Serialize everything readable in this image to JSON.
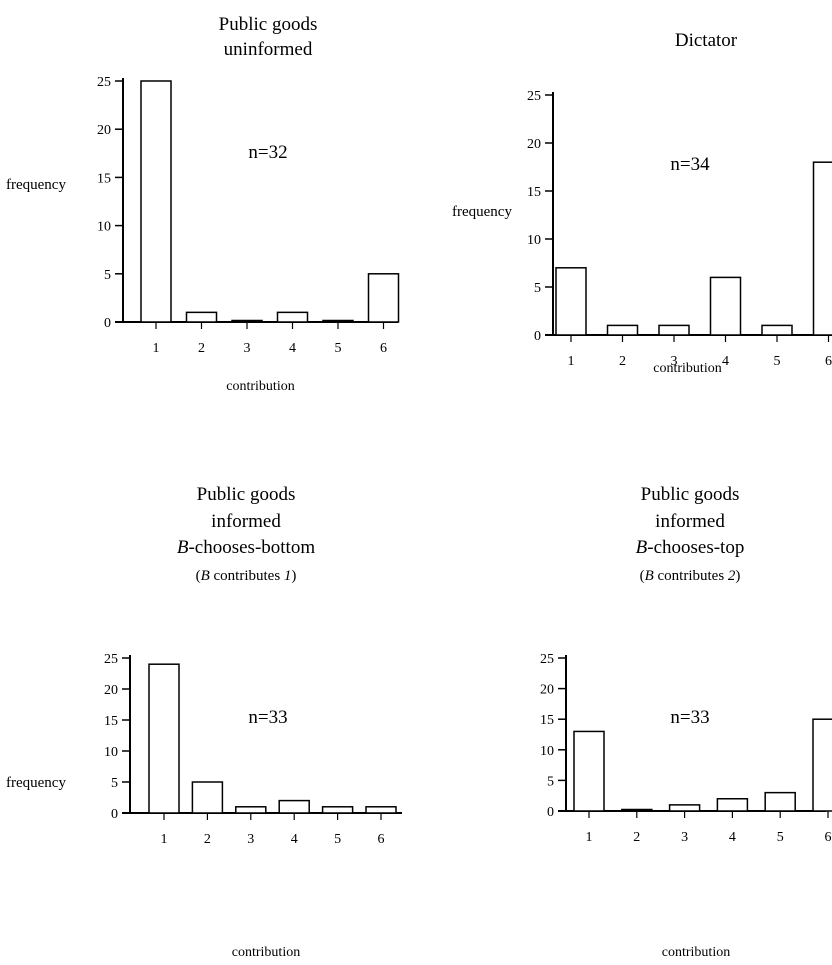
{
  "chart_data": [
    {
      "type": "bar",
      "title_lines": [
        "Public goods",
        "uninformed"
      ],
      "annotation": "n=32",
      "xlabel": "contribution",
      "ylabel": "frequency",
      "categories": [
        "1",
        "2",
        "3",
        "4",
        "5",
        "6"
      ],
      "values": [
        25,
        1,
        0,
        1,
        0,
        5
      ],
      "yticks": [
        "0",
        "5",
        "10",
        "15",
        "20",
        "25"
      ],
      "ylim": [
        0,
        25
      ]
    },
    {
      "type": "bar",
      "title_lines": [
        "Dictator"
      ],
      "annotation": "n=34",
      "xlabel": "contribution",
      "ylabel": "frequency",
      "categories": [
        "1",
        "2",
        "3",
        "4",
        "5",
        "6"
      ],
      "values": [
        7,
        1,
        1,
        6,
        1,
        18
      ],
      "yticks": [
        "0",
        "5",
        "10",
        "15",
        "20",
        "25"
      ],
      "ylim": [
        0,
        25
      ]
    },
    {
      "type": "bar",
      "title_lines": [
        "Public goods",
        "informed"
      ],
      "title_emph": {
        "italic": "B",
        "rest": "-chooses-bottom"
      },
      "subtitle": {
        "open": "(",
        "italic_b": "B",
        "mid": " contributes ",
        "italic_v": "1",
        "close": ")"
      },
      "annotation": "n=33",
      "xlabel": "contribution",
      "ylabel": "frequency",
      "categories": [
        "1",
        "2",
        "3",
        "4",
        "5",
        "6"
      ],
      "values": [
        24,
        5,
        1,
        2,
        1,
        1
      ],
      "yticks": [
        "0",
        "5",
        "10",
        "15",
        "20",
        "25"
      ],
      "ylim": [
        0,
        25
      ]
    },
    {
      "type": "bar",
      "title_lines": [
        "Public goods",
        "informed"
      ],
      "title_emph": {
        "italic": "B",
        "rest": "-chooses-top"
      },
      "subtitle": {
        "open": "(",
        "italic_b": "B",
        "mid": " contributes ",
        "italic_v": "2",
        "close": ")"
      },
      "annotation": "n=33",
      "xlabel": "contribution",
      "ylabel": "",
      "categories": [
        "1",
        "2",
        "3",
        "4",
        "5",
        "6"
      ],
      "values": [
        13,
        0,
        1,
        2,
        3,
        15
      ],
      "yticks": [
        "0",
        "5",
        "10",
        "15",
        "20",
        "25"
      ],
      "ylim": [
        0,
        25
      ]
    }
  ]
}
